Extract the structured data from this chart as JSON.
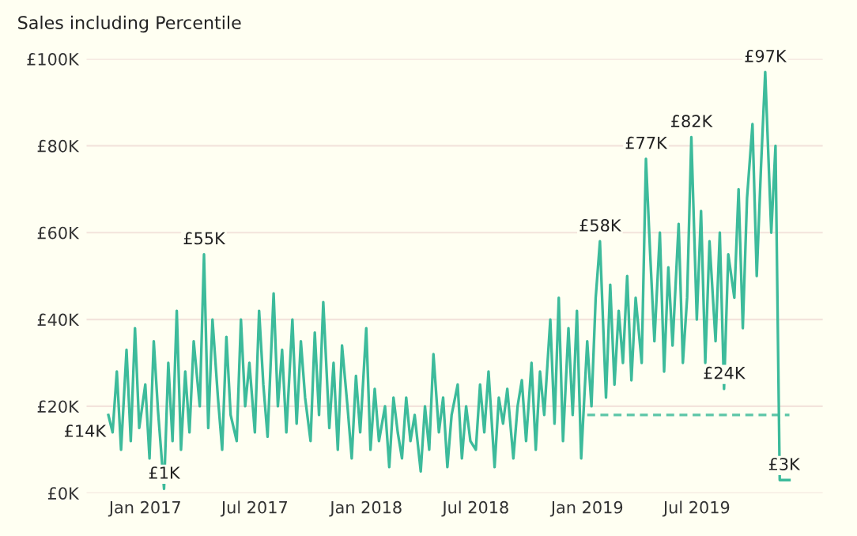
{
  "chart_data": {
    "type": "line",
    "title": "Sales including Percentile",
    "series": [
      {
        "type": "line",
        "color": "#3dbb9b",
        "line_style": "solid",
        "x": [
          "2016-11-01",
          "2016-11-08",
          "2016-11-15",
          "2016-11-22",
          "2016-12-01",
          "2016-12-08",
          "2016-12-15",
          "2016-12-22",
          "2017-01-01",
          "2017-01-08",
          "2017-01-15",
          "2017-01-22",
          "2017-02-01",
          "2017-02-08",
          "2017-02-15",
          "2017-02-22",
          "2017-03-01",
          "2017-03-08",
          "2017-03-15",
          "2017-03-22",
          "2017-04-01",
          "2017-04-08",
          "2017-04-15",
          "2017-04-22",
          "2017-05-01",
          "2017-05-08",
          "2017-05-15",
          "2017-05-22",
          "2017-06-01",
          "2017-06-08",
          "2017-06-15",
          "2017-06-22",
          "2017-07-01",
          "2017-07-08",
          "2017-07-15",
          "2017-07-22",
          "2017-08-01",
          "2017-08-08",
          "2017-08-15",
          "2017-08-22",
          "2017-09-01",
          "2017-09-08",
          "2017-09-15",
          "2017-09-22",
          "2017-10-01",
          "2017-10-08",
          "2017-10-15",
          "2017-10-22",
          "2017-11-01",
          "2017-11-08",
          "2017-11-15",
          "2017-11-22",
          "2017-12-01",
          "2017-12-08",
          "2017-12-15",
          "2017-12-22",
          "2018-01-01",
          "2018-01-08",
          "2018-01-15",
          "2018-01-22",
          "2018-02-01",
          "2018-02-08",
          "2018-02-15",
          "2018-02-22",
          "2018-03-01",
          "2018-03-08",
          "2018-03-15",
          "2018-03-22",
          "2018-04-01",
          "2018-04-08",
          "2018-04-15",
          "2018-04-22",
          "2018-05-01",
          "2018-05-08",
          "2018-05-15",
          "2018-05-22",
          "2018-06-01",
          "2018-06-08",
          "2018-06-15",
          "2018-06-22",
          "2018-07-01",
          "2018-07-08",
          "2018-07-15",
          "2018-07-22",
          "2018-08-01",
          "2018-08-08",
          "2018-08-15",
          "2018-08-22",
          "2018-09-01",
          "2018-09-08",
          "2018-09-15",
          "2018-09-22",
          "2018-10-01",
          "2018-10-08",
          "2018-10-15",
          "2018-10-22",
          "2018-11-01",
          "2018-11-08",
          "2018-11-15",
          "2018-11-22",
          "2018-12-01",
          "2018-12-08",
          "2018-12-15",
          "2018-12-22",
          "2019-01-01",
          "2019-01-08",
          "2019-01-15",
          "2019-01-22",
          "2019-02-01",
          "2019-02-08",
          "2019-02-15",
          "2019-02-22",
          "2019-03-01",
          "2019-03-08",
          "2019-03-15",
          "2019-03-22",
          "2019-04-01",
          "2019-04-08",
          "2019-04-15",
          "2019-04-22",
          "2019-05-01",
          "2019-05-08",
          "2019-05-15",
          "2019-05-22",
          "2019-06-01",
          "2019-06-08",
          "2019-06-15",
          "2019-06-22",
          "2019-07-01",
          "2019-07-08",
          "2019-07-15",
          "2019-07-22",
          "2019-08-01",
          "2019-08-08",
          "2019-08-15",
          "2019-08-22",
          "2019-09-01",
          "2019-09-08",
          "2019-09-15",
          "2019-09-22",
          "2019-10-01",
          "2019-10-08",
          "2019-10-15",
          "2019-10-22",
          "2019-11-01",
          "2019-11-08",
          "2019-11-15",
          "2019-11-22",
          "2019-12-01"
        ],
        "values": [
          18,
          14,
          28,
          10,
          33,
          12,
          38,
          15,
          25,
          8,
          35,
          19,
          1,
          30,
          12,
          42,
          10,
          28,
          14,
          35,
          20,
          55,
          15,
          40,
          22,
          10,
          36,
          18,
          12,
          40,
          20,
          30,
          14,
          42,
          25,
          13,
          46,
          20,
          33,
          14,
          40,
          16,
          35,
          22,
          12,
          37,
          18,
          44,
          15,
          30,
          10,
          34,
          20,
          8,
          27,
          14,
          38,
          10,
          24,
          12,
          20,
          6,
          22,
          14,
          8,
          22,
          12,
          18,
          5,
          20,
          10,
          32,
          14,
          22,
          6,
          18,
          25,
          8,
          20,
          12,
          10,
          25,
          14,
          28,
          6,
          22,
          16,
          24,
          8,
          20,
          26,
          12,
          30,
          10,
          28,
          18,
          40,
          16,
          45,
          12,
          38,
          18,
          42,
          8,
          35,
          20,
          45,
          58,
          22,
          48,
          25,
          42,
          30,
          50,
          26,
          45,
          30,
          77,
          55,
          35,
          60,
          28,
          52,
          34,
          62,
          30,
          45,
          82,
          40,
          65,
          30,
          58,
          35,
          60,
          24,
          55,
          45,
          70,
          38,
          68,
          85,
          50,
          75,
          97,
          60,
          80,
          3,
          3,
          3
        ]
      },
      {
        "color": "#5cc6a7",
        "line_style": "dashed",
        "type": "line",
        "x": [
          "2019-01-01",
          "2019-12-01"
        ],
        "values": [
          18,
          18
        ]
      }
    ],
    "xlim": [
      "2016-09-26",
      "2020-01-25"
    ],
    "xticks": [
      {
        "value": "2017-01-01",
        "label": "Jan 2017"
      },
      {
        "value": "2017-07-01",
        "label": "Jul 2017"
      },
      {
        "value": "2018-01-01",
        "label": "Jan 2018"
      },
      {
        "value": "2018-07-01",
        "label": "Jul 2018"
      },
      {
        "value": "2019-01-01",
        "label": "Jan 2019"
      },
      {
        "value": "2019-07-01",
        "label": "Jul 2019"
      }
    ],
    "ylim": [
      0,
      100
    ],
    "yticks": [
      {
        "value": 0,
        "label": "£0K"
      },
      {
        "value": 20,
        "label": "£20K"
      },
      {
        "value": 40,
        "label": "£40K"
      },
      {
        "value": 60,
        "label": "£60K"
      },
      {
        "value": 80,
        "label": "£80K"
      },
      {
        "value": 100,
        "label": "£100K"
      }
    ],
    "grid": "y",
    "annotations": [
      {
        "text": "£14K",
        "x": "2016-11-08",
        "y": 14
      },
      {
        "text": "£1K",
        "x": "2017-02-01",
        "y": 1
      },
      {
        "text": "£55K",
        "x": "2017-04-08",
        "y": 55
      },
      {
        "text": "£58K",
        "x": "2019-01-22",
        "y": 58
      },
      {
        "text": "£77K",
        "x": "2019-04-08",
        "y": 77
      },
      {
        "text": "£82K",
        "x": "2019-06-22",
        "y": 82
      },
      {
        "text": "£24K",
        "x": "2019-08-15",
        "y": 24
      },
      {
        "text": "£97K",
        "x": "2019-10-22",
        "y": 97
      },
      {
        "text": "£3K",
        "x": "2019-11-22",
        "y": 3
      }
    ]
  }
}
